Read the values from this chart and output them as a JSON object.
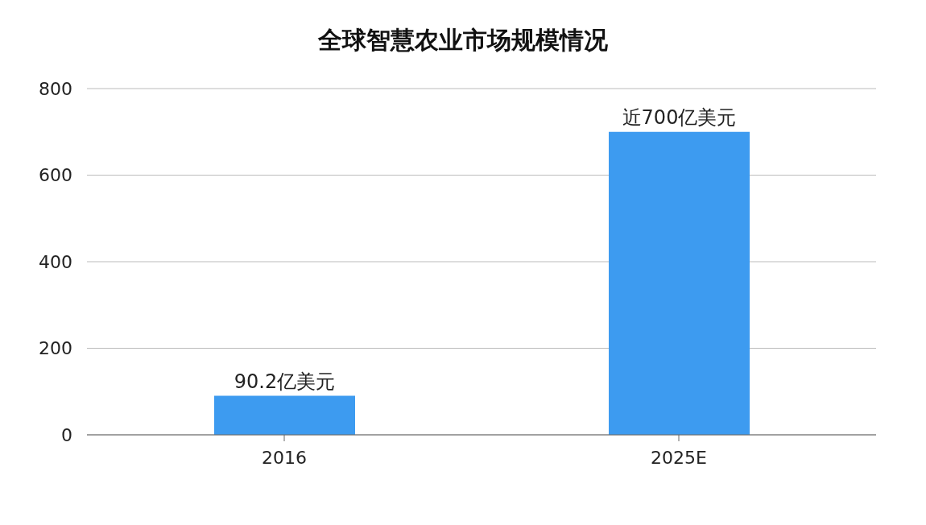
{
  "chart_data": {
    "type": "bar",
    "title": "全球智慧农业市场规模情况",
    "categories": [
      "2016",
      "2025E"
    ],
    "values": [
      90.2,
      700
    ],
    "value_labels": [
      "90.2亿美元",
      "近700亿美元"
    ],
    "color": "#3d9bf0",
    "ylim": [
      0,
      800
    ],
    "yticks": [
      0,
      200,
      400,
      600,
      800
    ],
    "grid": "y"
  }
}
